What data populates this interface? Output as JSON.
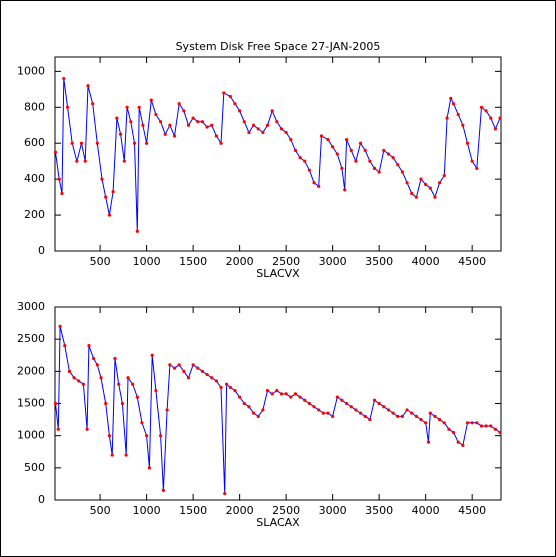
{
  "chart_data": [
    {
      "type": "line",
      "title": "System Disk Free Space 27-JAN-2005",
      "xlabel": "SLACVX",
      "xlim": [
        15,
        4810
      ],
      "ylim": [
        0,
        1080
      ],
      "xticks": [
        500,
        1000,
        1500,
        2000,
        2500,
        3000,
        3500,
        4000,
        4500
      ],
      "yticks": [
        0,
        200,
        400,
        600,
        800,
        1000
      ],
      "x": [
        20,
        60,
        90,
        110,
        150,
        200,
        250,
        300,
        340,
        370,
        420,
        470,
        520,
        560,
        600,
        640,
        680,
        720,
        760,
        790,
        830,
        870,
        900,
        920,
        960,
        1000,
        1050,
        1100,
        1150,
        1200,
        1250,
        1300,
        1350,
        1400,
        1450,
        1500,
        1550,
        1600,
        1650,
        1700,
        1750,
        1800,
        1830,
        1900,
        1950,
        2000,
        2050,
        2100,
        2150,
        2200,
        2250,
        2300,
        2350,
        2400,
        2450,
        2500,
        2550,
        2600,
        2650,
        2700,
        2750,
        2800,
        2850,
        2880,
        2950,
        3000,
        3050,
        3100,
        3130,
        3150,
        3200,
        3250,
        3300,
        3350,
        3400,
        3450,
        3500,
        3550,
        3600,
        3650,
        3700,
        3750,
        3800,
        3850,
        3900,
        3950,
        4000,
        4050,
        4100,
        4150,
        4200,
        4230,
        4270,
        4300,
        4350,
        4400,
        4450,
        4500,
        4550,
        4600,
        4650,
        4700,
        4750,
        4800
      ],
      "series": [
        {
          "color": "#0000ff",
          "marker_color": "#ff0000",
          "values": [
            550,
            400,
            320,
            960,
            800,
            600,
            500,
            600,
            500,
            920,
            820,
            600,
            400,
            300,
            200,
            330,
            740,
            650,
            500,
            800,
            720,
            600,
            110,
            800,
            700,
            600,
            840,
            760,
            720,
            650,
            700,
            640,
            820,
            780,
            700,
            740,
            720,
            720,
            690,
            700,
            640,
            600,
            880,
            860,
            820,
            780,
            720,
            660,
            700,
            680,
            660,
            700,
            780,
            720,
            680,
            660,
            620,
            560,
            520,
            500,
            450,
            380,
            360,
            640,
            620,
            580,
            540,
            460,
            340,
            620,
            560,
            500,
            600,
            560,
            500,
            460,
            440,
            560,
            540,
            520,
            480,
            440,
            380,
            320,
            300,
            400,
            370,
            350,
            300,
            380,
            420,
            740,
            850,
            820,
            760,
            700,
            600,
            500,
            460,
            800,
            780,
            740,
            680,
            740
          ]
        }
      ]
    },
    {
      "type": "line",
      "xlabel": "SLACAX",
      "xlim": [
        15,
        4810
      ],
      "ylim": [
        0,
        3000
      ],
      "xticks": [
        500,
        1000,
        1500,
        2000,
        2500,
        3000,
        3500,
        4000,
        4500
      ],
      "yticks": [
        0,
        500,
        1000,
        1500,
        2000,
        2500,
        3000
      ],
      "x": [
        20,
        50,
        70,
        120,
        170,
        220,
        270,
        320,
        360,
        380,
        430,
        470,
        510,
        560,
        600,
        630,
        660,
        700,
        740,
        780,
        800,
        850,
        900,
        950,
        1000,
        1030,
        1060,
        1100,
        1150,
        1180,
        1220,
        1250,
        1300,
        1350,
        1400,
        1450,
        1500,
        1550,
        1600,
        1650,
        1700,
        1750,
        1800,
        1840,
        1860,
        1900,
        1950,
        2000,
        2050,
        2100,
        2150,
        2200,
        2250,
        2300,
        2350,
        2400,
        2450,
        2500,
        2550,
        2600,
        2650,
        2700,
        2750,
        2800,
        2850,
        2900,
        2950,
        3000,
        3050,
        3100,
        3150,
        3200,
        3250,
        3300,
        3350,
        3400,
        3450,
        3500,
        3550,
        3600,
        3650,
        3700,
        3750,
        3800,
        3850,
        3900,
        3950,
        4000,
        4030,
        4050,
        4100,
        4150,
        4200,
        4250,
        4300,
        4350,
        4400,
        4450,
        4500,
        4550,
        4600,
        4650,
        4700,
        4750,
        4800
      ],
      "series": [
        {
          "color": "#0000ff",
          "marker_color": "#ff0000",
          "values": [
            1500,
            1100,
            2700,
            2400,
            2000,
            1900,
            1850,
            1800,
            1100,
            2400,
            2200,
            2100,
            1900,
            1500,
            1000,
            700,
            2200,
            1800,
            1500,
            700,
            1900,
            1800,
            1600,
            1200,
            1000,
            500,
            2250,
            1700,
            1000,
            150,
            1400,
            2100,
            2050,
            2100,
            2000,
            1900,
            2100,
            2050,
            2000,
            1950,
            1900,
            1850,
            1750,
            100,
            1800,
            1750,
            1700,
            1600,
            1500,
            1450,
            1350,
            1300,
            1400,
            1700,
            1650,
            1700,
            1650,
            1650,
            1600,
            1650,
            1600,
            1550,
            1500,
            1450,
            1400,
            1350,
            1350,
            1300,
            1600,
            1550,
            1500,
            1450,
            1400,
            1350,
            1300,
            1250,
            1550,
            1500,
            1450,
            1400,
            1350,
            1300,
            1300,
            1400,
            1350,
            1300,
            1250,
            1200,
            900,
            1350,
            1300,
            1250,
            1200,
            1100,
            1050,
            900,
            850,
            1200,
            1200,
            1200,
            1150,
            1150,
            1150,
            1100,
            1050
          ]
        }
      ]
    }
  ]
}
